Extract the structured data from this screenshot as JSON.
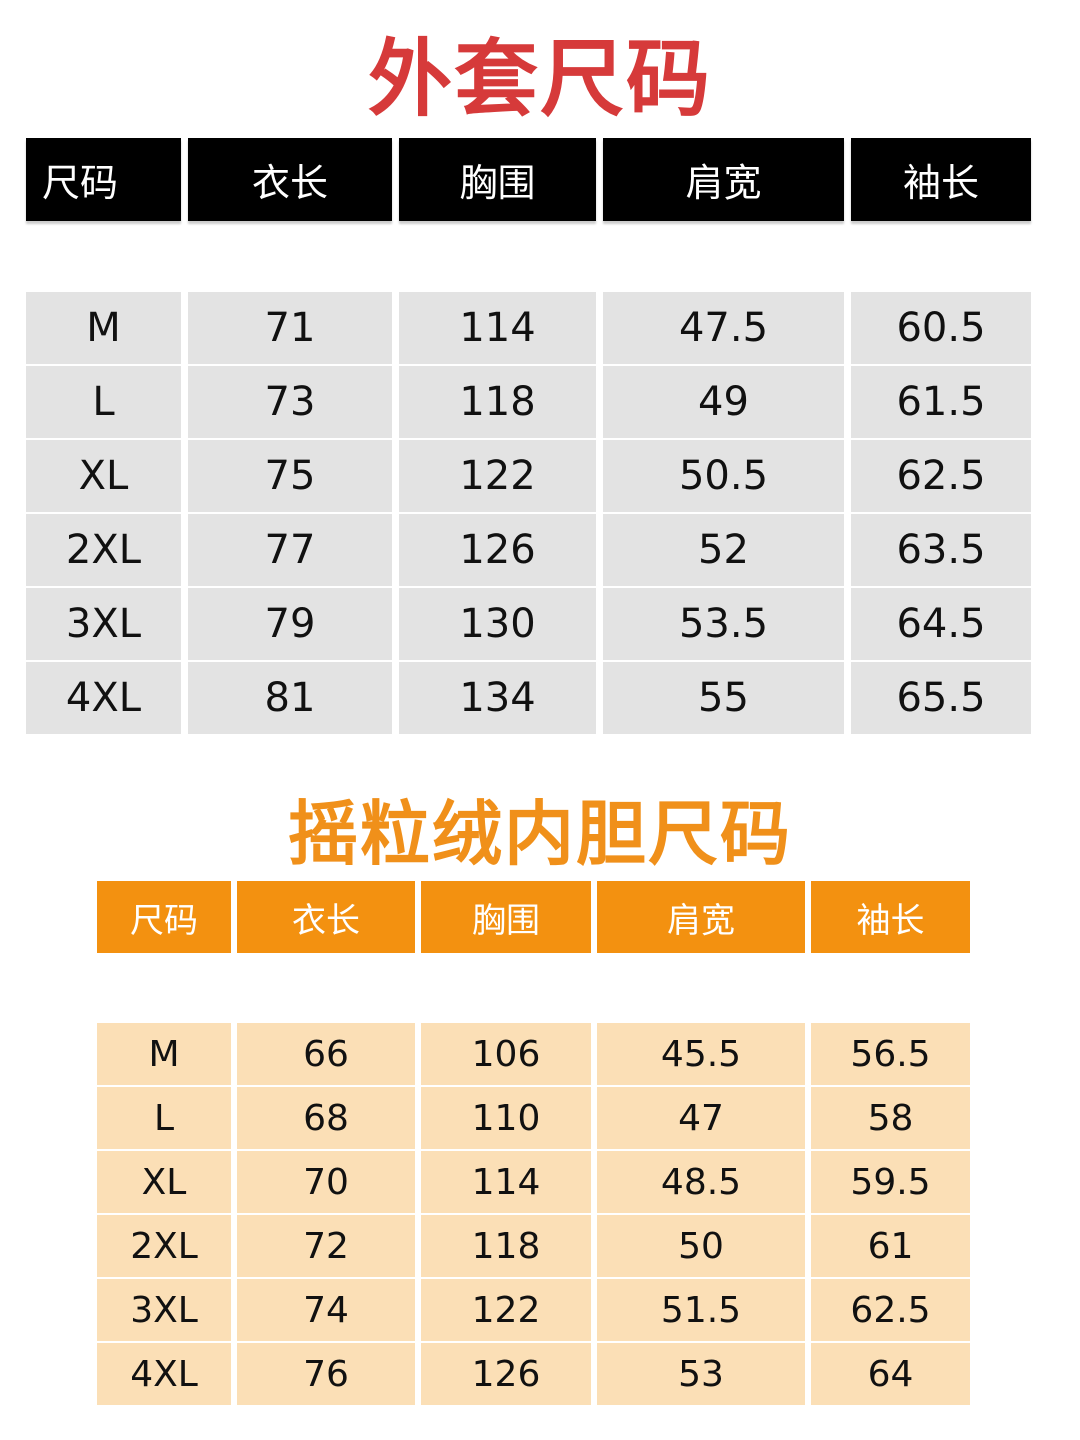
{
  "outer": {
    "title": "外套尺码",
    "headers": [
      "尺码",
      "衣长",
      "胸围",
      "肩宽",
      "袖长"
    ],
    "rows": [
      [
        "M",
        "71",
        "114",
        "47.5",
        "60.5"
      ],
      [
        "L",
        "73",
        "118",
        "49",
        "61.5"
      ],
      [
        "XL",
        "75",
        "122",
        "50.5",
        "62.5"
      ],
      [
        "2XL",
        "77",
        "126",
        "52",
        "63.5"
      ],
      [
        "3XL",
        "79",
        "130",
        "53.5",
        "64.5"
      ],
      [
        "4XL",
        "81",
        "134",
        "55",
        "65.5"
      ]
    ],
    "colors": {
      "title": "#d63a3a",
      "header_bg": "#000000",
      "row_bg": "#e3e3e3"
    }
  },
  "liner": {
    "title": "摇粒绒内胆尺码",
    "headers": [
      "尺码",
      "衣长",
      "胸围",
      "肩宽",
      "袖长"
    ],
    "rows": [
      [
        "M",
        "66",
        "106",
        "45.5",
        "56.5"
      ],
      [
        "L",
        "68",
        "110",
        "47",
        "58"
      ],
      [
        "XL",
        "70",
        "114",
        "48.5",
        "59.5"
      ],
      [
        "2XL",
        "72",
        "118",
        "50",
        "61"
      ],
      [
        "3XL",
        "74",
        "122",
        "51.5",
        "62.5"
      ],
      [
        "4XL",
        "76",
        "126",
        "53",
        "64"
      ]
    ],
    "colors": {
      "title": "#f0901a",
      "header_bg": "#f39110",
      "row_bg": "#fbdfb6"
    }
  }
}
